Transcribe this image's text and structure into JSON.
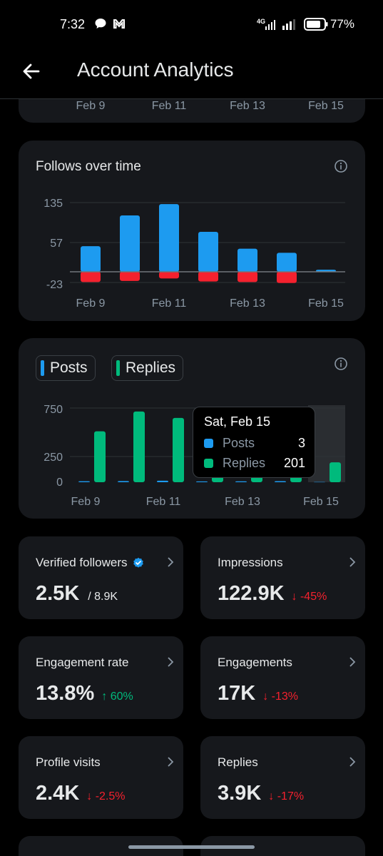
{
  "status": {
    "time": "7:32",
    "network": "4G",
    "battery": "77%"
  },
  "header": {
    "title": "Account Analytics"
  },
  "top_card": {
    "x_ticks": [
      "Feb 9",
      "Feb 11",
      "Feb 13",
      "Feb 15"
    ]
  },
  "follows_chart": {
    "title": "Follows over time",
    "chart_data": {
      "type": "bar",
      "title": "Follows over time",
      "categories": [
        "Feb 9",
        "Feb 10",
        "Feb 11",
        "Feb 12",
        "Feb 13",
        "Feb 14",
        "Feb 15"
      ],
      "y_ticks": [
        "135",
        "57",
        "-23"
      ],
      "x_ticks": [
        "Feb 9",
        "Feb 11",
        "Feb 13",
        "Feb 15"
      ],
      "ylim": [
        -23,
        135
      ],
      "series": [
        {
          "values": [
            50,
            110,
            132,
            78,
            45,
            37,
            4
          ],
          "color": "#1d9bf0"
        },
        {
          "values": [
            -20,
            -18,
            -13,
            -19,
            -20,
            -22,
            0
          ],
          "color": "#f4212e"
        }
      ]
    }
  },
  "posts_chart": {
    "legend": [
      {
        "label": "Posts",
        "color": "#1d9bf0"
      },
      {
        "label": "Replies",
        "color": "#00ba7c"
      }
    ],
    "tooltip": {
      "date": "Sat, Feb 15",
      "posts_label": "Posts",
      "posts_value": "3",
      "replies_label": "Replies",
      "replies_value": "201"
    },
    "chart_data": {
      "type": "bar",
      "categories": [
        "Feb 9",
        "Feb 10",
        "Feb 11",
        "Feb 12",
        "Feb 13",
        "Feb 14",
        "Feb 15"
      ],
      "y_ticks": [
        "750",
        "250",
        "0"
      ],
      "x_ticks": [
        "Feb 9",
        "Feb 11",
        "Feb 13",
        "Feb 15"
      ],
      "ylim": [
        0,
        750
      ],
      "series": [
        {
          "name": "Posts",
          "values": [
            10,
            12,
            15,
            8,
            9,
            11,
            3
          ],
          "color": "#1d9bf0"
        },
        {
          "name": "Replies",
          "values": [
            515,
            715,
            650,
            240,
            235,
            150,
            201
          ],
          "color": "#00ba7c"
        }
      ]
    }
  },
  "metrics": [
    {
      "label": "Verified followers",
      "value": "2.5K",
      "sub": "/ 8.9K",
      "change": "",
      "direction": ""
    },
    {
      "label": "Impressions",
      "value": "122.9K",
      "sub": "",
      "change": "-45%",
      "direction": "down"
    },
    {
      "label": "Engagement rate",
      "value": "13.8%",
      "sub": "",
      "change": "60%",
      "direction": "up"
    },
    {
      "label": "Engagements",
      "value": "17K",
      "sub": "",
      "change": "-13%",
      "direction": "down"
    },
    {
      "label": "Profile visits",
      "value": "2.4K",
      "sub": "",
      "change": "-2.5%",
      "direction": "down"
    },
    {
      "label": "Replies",
      "value": "3.9K",
      "sub": "",
      "change": "-17%",
      "direction": "down"
    }
  ]
}
